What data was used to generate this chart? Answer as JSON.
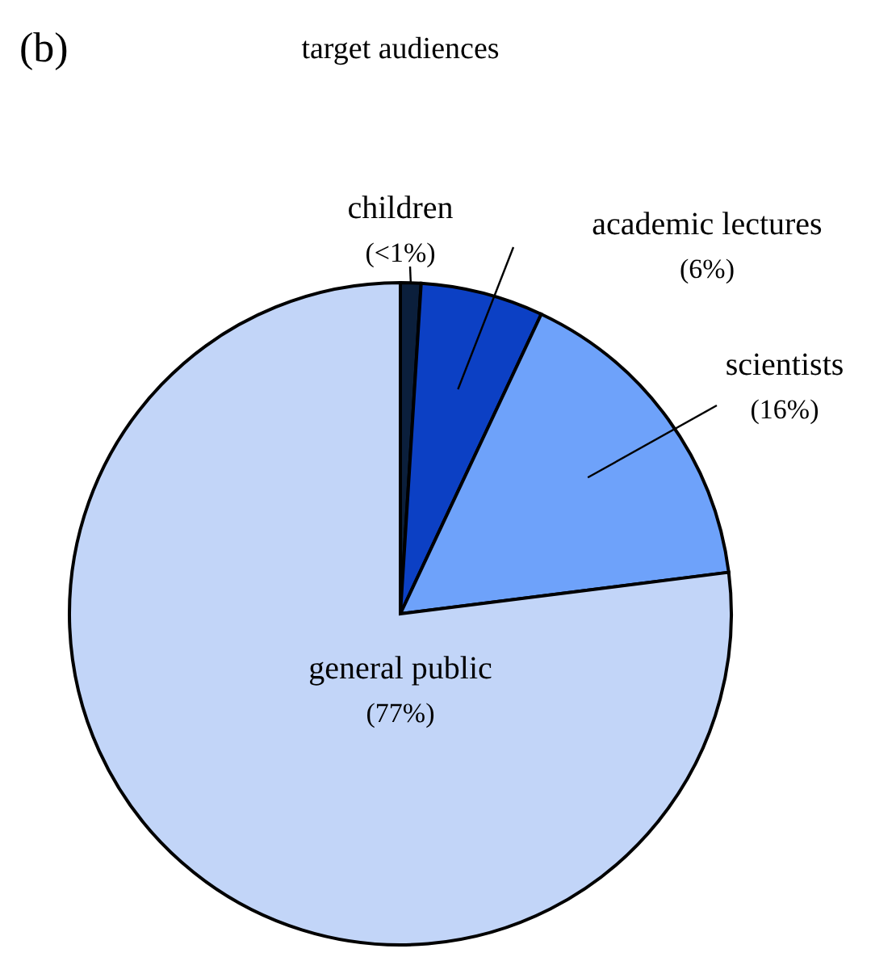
{
  "chart_data": {
    "type": "pie",
    "title": "target audiences",
    "categories": [
      "children",
      "academic lectures",
      "scientists",
      "general public"
    ],
    "values": [
      1,
      6,
      16,
      77
    ],
    "value_labels": [
      "(<1%)",
      "(6%)",
      "(16%)",
      "(77%)"
    ],
    "colors": [
      "#0b1f3c",
      "#0c40c4",
      "#6ea2fa",
      "#c2d5f8"
    ],
    "annotations": [
      "(b)"
    ]
  }
}
